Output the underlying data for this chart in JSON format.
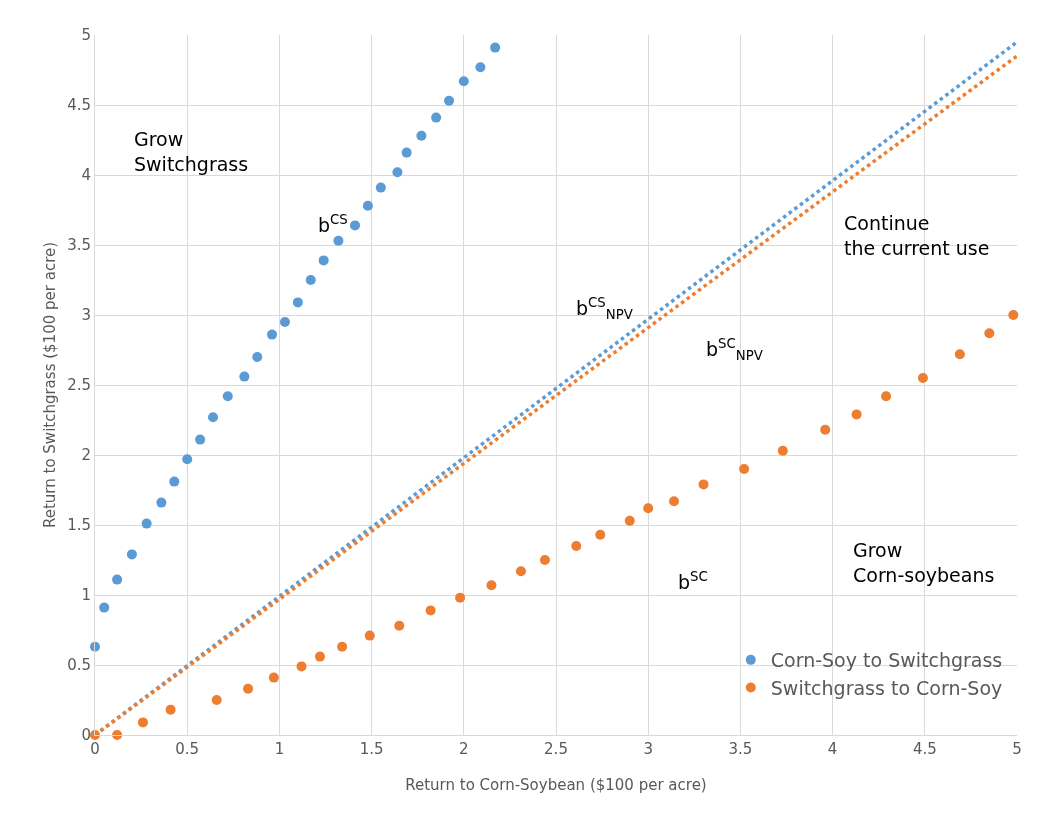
{
  "chart_data": {
    "type": "scatter",
    "xlabel": "Return to Corn-Soybean ($100 per acre)",
    "ylabel": "Return to Switchgrass ($100 per acre)",
    "xlim": [
      0,
      5
    ],
    "xticks": [
      0,
      0.5,
      1,
      1.5,
      2,
      2.5,
      3,
      3.5,
      4,
      4.5,
      5
    ],
    "ylim": [
      0,
      5
    ],
    "yticks": [
      0,
      0.5,
      1,
      1.5,
      2,
      2.5,
      3,
      3.5,
      4,
      4.5,
      5
    ],
    "grid": true,
    "legend": "bottom right",
    "marker": "circle",
    "series": [
      {
        "name": "Corn-Soy to Switchgrass",
        "color": "#5b9bd5",
        "x": [
          0,
          0.05,
          0.12,
          0.2,
          0.28,
          0.36,
          0.43,
          0.5,
          0.57,
          0.64,
          0.72,
          0.81,
          0.88,
          0.96,
          1.03,
          1.1,
          1.17,
          1.24,
          1.32,
          1.41,
          1.48,
          1.55,
          1.64,
          1.69,
          1.77,
          1.85,
          1.92,
          2.0,
          2.09,
          2.17
        ],
        "values": [
          0.63,
          0.91,
          1.11,
          1.29,
          1.51,
          1.66,
          1.81,
          1.97,
          2.11,
          2.27,
          2.42,
          2.56,
          2.7,
          2.86,
          2.95,
          3.09,
          3.25,
          3.39,
          3.53,
          3.64,
          3.78,
          3.91,
          4.02,
          4.16,
          4.28,
          4.41,
          4.53,
          4.67,
          4.77,
          4.91
        ]
      },
      {
        "name": "Switchgrass to Corn-Soy",
        "color": "#ed7d31",
        "x": [
          0,
          0.12,
          0.26,
          0.41,
          0.66,
          0.83,
          0.97,
          1.12,
          1.22,
          1.34,
          1.49,
          1.65,
          1.82,
          1.98,
          2.15,
          2.31,
          2.44,
          2.61,
          2.74,
          2.9,
          3.0,
          3.14,
          3.3,
          3.52,
          3.73,
          3.96,
          4.13,
          4.29,
          4.49,
          4.69,
          4.85,
          4.98
        ],
        "values": [
          0,
          0,
          0.09,
          0.18,
          0.25,
          0.33,
          0.41,
          0.49,
          0.56,
          0.63,
          0.71,
          0.78,
          0.89,
          0.98,
          1.07,
          1.17,
          1.25,
          1.35,
          1.43,
          1.53,
          1.62,
          1.67,
          1.79,
          1.9,
          2.03,
          2.18,
          2.29,
          2.42,
          2.55,
          2.72,
          2.87,
          3.0
        ]
      },
      {
        "type": "line",
        "line_style": "dotted",
        "marker": "none",
        "color": "#5b9bd5",
        "x": [
          0,
          5
        ],
        "values": [
          0,
          4.95
        ]
      },
      {
        "type": "line",
        "line_style": "dotted",
        "marker": "none",
        "color": "#ed7d31",
        "x": [
          0,
          5
        ],
        "values": [
          0,
          4.85
        ]
      }
    ],
    "annotations": [
      "Grow\nSwitchgrass",
      "b$^{CS}$",
      "Continue\nthe current use",
      "b$^{CS}$$_{NPV}$",
      "b$^{SC}$$_{NPV}$",
      "b$^{SC}$",
      "Grow\nCorn-soybeans"
    ]
  }
}
